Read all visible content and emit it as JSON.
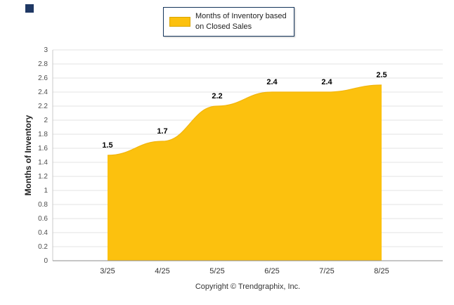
{
  "page": {
    "background": "#FFFFFF"
  },
  "corner_marker": {
    "color": "#1F3864"
  },
  "legend": {
    "label_line1": "Months of Inventory based",
    "label_line2": "on Closed Sales",
    "swatch_color": "#FCC10E"
  },
  "footer": {
    "copyright": "Copyright © Trendgraphix, Inc."
  },
  "chart_data": {
    "type": "area",
    "title": "",
    "categories": [
      "3/25",
      "4/25",
      "5/25",
      "6/25",
      "7/25",
      "8/25"
    ],
    "series": [
      {
        "name": "Months of Inventory based on Closed Sales",
        "values": [
          1.5,
          1.7,
          2.2,
          2.4,
          2.4,
          2.5
        ]
      }
    ],
    "data_labels": [
      "1.5",
      "1.7",
      "2.2",
      "2.4",
      "2.4",
      "2.5"
    ],
    "xlabel": "",
    "ylabel": "Months of Inventory",
    "ylim": [
      0,
      3
    ],
    "ytick_step": 0.2,
    "grid": true,
    "legend_position": "top",
    "area_color": "#FCC10E",
    "area_edge_color": "#F2B50C"
  }
}
